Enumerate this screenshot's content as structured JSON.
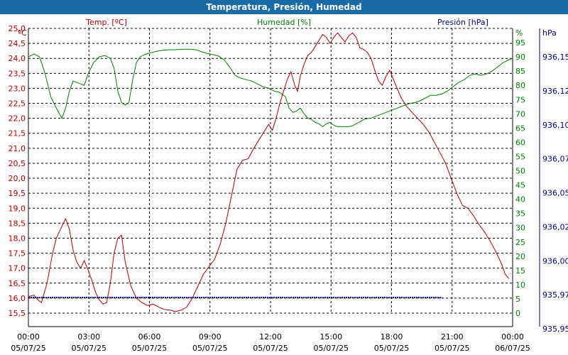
{
  "window": {
    "title": "Temperatura, Presión, Humedad"
  },
  "colors": {
    "temperature": "#b30000",
    "humidity": "#008000",
    "pressure": "#00008b",
    "titlebar": "#1a6aa6"
  },
  "chart_data": {
    "type": "line",
    "title": "Temperatura, Presión, Humedad",
    "grid": true,
    "x_range": [
      "05/07/25 00:00",
      "06/07/25 00:00"
    ],
    "x_ticks": [
      {
        "time": "00:00",
        "date": "05/07/25"
      },
      {
        "time": "03:00",
        "date": "05/07/25"
      },
      {
        "time": "06:00",
        "date": "05/07/25"
      },
      {
        "time": "09:00",
        "date": "05/07/25"
      },
      {
        "time": "12:00",
        "date": "05/07/25"
      },
      {
        "time": "15:00",
        "date": "05/07/25"
      },
      {
        "time": "18:00",
        "date": "05/07/25"
      },
      {
        "time": "21:00",
        "date": "05/07/25"
      },
      {
        "time": "00:00",
        "date": "06/07/25"
      }
    ],
    "axes": {
      "temperature": {
        "label": "Temp. [ºC]",
        "unit": "ºC",
        "position": "left",
        "ylim": [
          15.5,
          25.0
        ],
        "ticks": [
          "25,0",
          "24,5",
          "24,0",
          "23,5",
          "23,0",
          "22,5",
          "22,0",
          "21,5",
          "21,0",
          "20,5",
          "20,0",
          "19,5",
          "19,0",
          "18,5",
          "18,0",
          "17,5",
          "17,0",
          "16,5",
          "16,0",
          "15,5"
        ]
      },
      "humidity": {
        "label": "Humedad [%]",
        "unit": "%",
        "position": "right",
        "ylim": [
          0,
          100
        ],
        "ticks": [
          "95",
          "90",
          "85",
          "80",
          "75",
          "70",
          "65",
          "60",
          "55",
          "50",
          "45",
          "40",
          "35",
          "30",
          "25",
          "20",
          "15",
          "10",
          "5",
          "0"
        ]
      },
      "pressure": {
        "label": "Presión [hPa]",
        "unit": "hPa",
        "position": "right-outer",
        "ylim": [
          935.95,
          936.17
        ],
        "ticks": [
          "936,15",
          "936,12",
          "936,10",
          "936,07",
          "936,05",
          "936,02",
          "936,00",
          "935,97",
          "935,95"
        ]
      }
    },
    "series": [
      {
        "name": "Temp. [ºC]",
        "axis": "temperature",
        "points": [
          [
            0.0,
            16.05
          ],
          [
            0.3,
            16.1
          ],
          [
            0.5,
            15.95
          ],
          [
            0.7,
            15.85
          ],
          [
            1.0,
            16.5
          ],
          [
            1.3,
            17.5
          ],
          [
            1.5,
            18.0
          ],
          [
            1.8,
            18.4
          ],
          [
            2.0,
            18.65
          ],
          [
            2.2,
            18.3
          ],
          [
            2.4,
            17.6
          ],
          [
            2.6,
            17.2
          ],
          [
            2.8,
            17.0
          ],
          [
            3.0,
            17.25
          ],
          [
            3.2,
            16.95
          ],
          [
            3.4,
            16.6
          ],
          [
            3.6,
            16.2
          ],
          [
            3.8,
            15.95
          ],
          [
            4.0,
            15.8
          ],
          [
            4.2,
            15.85
          ],
          [
            4.4,
            16.5
          ],
          [
            4.6,
            17.5
          ],
          [
            4.8,
            18.0
          ],
          [
            5.0,
            18.1
          ],
          [
            5.2,
            17.2
          ],
          [
            5.5,
            16.4
          ],
          [
            5.8,
            16.0
          ],
          [
            6.1,
            15.85
          ],
          [
            6.4,
            15.75
          ],
          [
            6.7,
            15.8
          ],
          [
            7.0,
            15.7
          ],
          [
            7.3,
            15.62
          ],
          [
            7.6,
            15.6
          ],
          [
            7.9,
            15.55
          ],
          [
            8.2,
            15.6
          ],
          [
            8.5,
            15.7
          ],
          [
            8.8,
            16.0
          ],
          [
            9.1,
            16.4
          ],
          [
            9.4,
            16.8
          ],
          [
            9.7,
            17.05
          ],
          [
            10.0,
            17.3
          ],
          [
            10.3,
            17.8
          ],
          [
            10.6,
            18.5
          ],
          [
            10.9,
            19.4
          ],
          [
            11.2,
            20.3
          ],
          [
            11.5,
            20.6
          ],
          [
            11.8,
            20.65
          ],
          [
            12.1,
            21.0
          ],
          [
            12.4,
            21.3
          ],
          [
            12.7,
            21.6
          ],
          [
            12.9,
            21.8
          ],
          [
            13.1,
            21.6
          ],
          [
            13.3,
            22.0
          ],
          [
            13.5,
            22.5
          ],
          [
            13.7,
            22.9
          ],
          [
            13.9,
            23.3
          ],
          [
            14.1,
            23.55
          ],
          [
            14.3,
            23.1
          ],
          [
            14.45,
            22.9
          ],
          [
            14.6,
            23.4
          ],
          [
            14.8,
            23.8
          ],
          [
            15.0,
            24.1
          ],
          [
            15.2,
            24.2
          ],
          [
            15.4,
            24.4
          ],
          [
            15.6,
            24.6
          ],
          [
            15.8,
            24.8
          ],
          [
            16.0,
            24.7
          ],
          [
            16.2,
            24.5
          ],
          [
            16.4,
            24.7
          ],
          [
            16.6,
            24.85
          ],
          [
            16.8,
            24.7
          ],
          [
            17.0,
            24.55
          ],
          [
            17.2,
            24.75
          ],
          [
            17.4,
            24.85
          ],
          [
            17.6,
            24.7
          ],
          [
            17.8,
            24.35
          ],
          [
            18.0,
            24.3
          ],
          [
            18.2,
            24.2
          ],
          [
            18.4,
            24.0
          ],
          [
            18.6,
            23.6
          ],
          [
            18.8,
            23.25
          ],
          [
            19.0,
            23.1
          ],
          [
            19.2,
            23.4
          ],
          [
            19.4,
            23.6
          ],
          [
            19.6,
            23.3
          ],
          [
            19.8,
            23.0
          ],
          [
            20.0,
            22.7
          ],
          [
            20.3,
            22.4
          ],
          [
            20.6,
            22.2
          ],
          [
            20.9,
            22.0
          ],
          [
            21.2,
            21.8
          ],
          [
            21.5,
            21.55
          ],
          [
            21.8,
            21.2
          ],
          [
            22.1,
            20.85
          ],
          [
            22.4,
            20.5
          ],
          [
            22.7,
            20.0
          ],
          [
            23.0,
            19.5
          ],
          [
            23.3,
            19.1
          ],
          [
            23.6,
            19.0
          ],
          [
            23.9,
            18.75
          ],
          [
            24.2,
            18.45
          ],
          [
            24.5,
            18.2
          ],
          [
            24.8,
            17.9
          ],
          [
            25.1,
            17.55
          ],
          [
            25.4,
            17.15
          ],
          [
            25.6,
            16.8
          ],
          [
            25.8,
            16.65
          ]
        ]
      },
      {
        "name": "Humedad [%]",
        "axis": "humidity",
        "points": [
          [
            0.0,
            90.0
          ],
          [
            0.3,
            91.0
          ],
          [
            0.6,
            90.0
          ],
          [
            0.9,
            84.0
          ],
          [
            1.2,
            76.0
          ],
          [
            1.5,
            72.0
          ],
          [
            1.8,
            68.5
          ],
          [
            2.0,
            72.0
          ],
          [
            2.2,
            78.0
          ],
          [
            2.4,
            81.5
          ],
          [
            2.6,
            81.0
          ],
          [
            2.8,
            80.5
          ],
          [
            3.0,
            80.0
          ],
          [
            3.2,
            84.0
          ],
          [
            3.5,
            88.0
          ],
          [
            3.8,
            90.0
          ],
          [
            4.1,
            90.5
          ],
          [
            4.4,
            89.5
          ],
          [
            4.6,
            86.0
          ],
          [
            4.8,
            78.0
          ],
          [
            5.0,
            74.0
          ],
          [
            5.2,
            73.0
          ],
          [
            5.4,
            74.0
          ],
          [
            5.6,
            82.0
          ],
          [
            5.8,
            88.0
          ],
          [
            6.0,
            90.0
          ],
          [
            6.3,
            91.0
          ],
          [
            6.6,
            91.5
          ],
          [
            6.9,
            92.0
          ],
          [
            7.2,
            92.3
          ],
          [
            7.5,
            92.5
          ],
          [
            7.8,
            92.5
          ],
          [
            8.1,
            92.6
          ],
          [
            8.4,
            92.7
          ],
          [
            8.7,
            92.7
          ],
          [
            9.0,
            92.5
          ],
          [
            9.3,
            91.8
          ],
          [
            9.6,
            91.2
          ],
          [
            9.9,
            90.8
          ],
          [
            10.2,
            90.3
          ],
          [
            10.5,
            89.0
          ],
          [
            10.8,
            86.5
          ],
          [
            11.1,
            83.5
          ],
          [
            11.4,
            82.5
          ],
          [
            11.7,
            82.0
          ],
          [
            12.0,
            81.5
          ],
          [
            12.3,
            80.5
          ],
          [
            12.6,
            79.5
          ],
          [
            12.9,
            79.0
          ],
          [
            13.2,
            78.0
          ],
          [
            13.5,
            77.5
          ],
          [
            13.8,
            76.0
          ],
          [
            14.0,
            72.0
          ],
          [
            14.2,
            70.5
          ],
          [
            14.4,
            71.0
          ],
          [
            14.6,
            72.0
          ],
          [
            14.8,
            70.0
          ],
          [
            15.0,
            68.5
          ],
          [
            15.2,
            68.0
          ],
          [
            15.4,
            67.0
          ],
          [
            15.6,
            66.5
          ],
          [
            15.8,
            65.5
          ],
          [
            16.0,
            66.5
          ],
          [
            16.2,
            67.0
          ],
          [
            16.4,
            66.0
          ],
          [
            16.6,
            65.5
          ],
          [
            16.8,
            65.5
          ],
          [
            17.0,
            65.5
          ],
          [
            17.2,
            65.5
          ],
          [
            17.4,
            65.8
          ],
          [
            17.6,
            66.5
          ],
          [
            17.8,
            67.2
          ],
          [
            18.0,
            68.0
          ],
          [
            18.2,
            68.3
          ],
          [
            18.4,
            68.5
          ],
          [
            18.6,
            69.0
          ],
          [
            18.8,
            69.5
          ],
          [
            19.0,
            70.0
          ],
          [
            19.2,
            70.5
          ],
          [
            19.4,
            71.0
          ],
          [
            19.6,
            71.5
          ],
          [
            19.8,
            72.0
          ],
          [
            20.0,
            72.5
          ],
          [
            20.2,
            73.0
          ],
          [
            20.4,
            73.5
          ],
          [
            20.6,
            73.8
          ],
          [
            20.8,
            74.0
          ],
          [
            21.0,
            74.5
          ],
          [
            21.3,
            75.5
          ],
          [
            21.6,
            76.5
          ],
          [
            21.9,
            76.5
          ],
          [
            22.2,
            77.0
          ],
          [
            22.5,
            78.0
          ],
          [
            22.8,
            79.5
          ],
          [
            23.1,
            81.0
          ],
          [
            23.4,
            82.0
          ],
          [
            23.7,
            83.5
          ],
          [
            24.0,
            84.0
          ],
          [
            24.3,
            83.5
          ],
          [
            24.6,
            84.0
          ],
          [
            24.9,
            85.0
          ],
          [
            25.2,
            86.5
          ],
          [
            25.5,
            88.0
          ],
          [
            25.8,
            89.0
          ],
          [
            26.0,
            89.5
          ]
        ]
      },
      {
        "name": "Presión [hPa]",
        "axis": "pressure",
        "points": [
          [
            0.0,
            935.962
          ],
          [
            26.0,
            935.962
          ]
        ]
      }
    ]
  }
}
